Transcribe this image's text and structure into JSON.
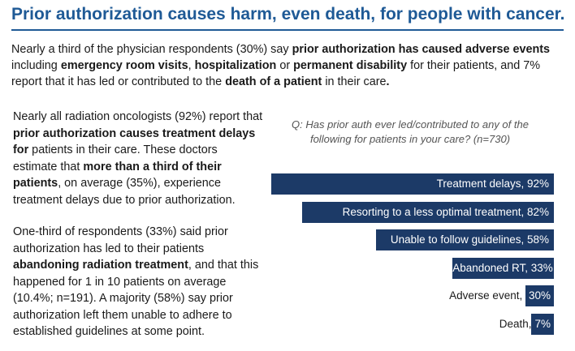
{
  "title": "Prior authorization causes harm, even death, for people with cancer.",
  "intro": {
    "t1": "Nearly a third of the physician respondents (30%) say ",
    "b1": "prior authorization has caused adverse events",
    "t2": " including ",
    "b2": "emergency room visits",
    "t3": ", ",
    "b3": "hospitalization",
    "t4": " or ",
    "b4": "permanent disability",
    "t5": " for their patients, and 7% report that it has led or contributed to the ",
    "b5": "death of a patient",
    "t6": " in their care",
    "b6": "."
  },
  "para1": {
    "t1": "Nearly all radiation oncologists (92%) report that ",
    "b1": "prior authorization causes treatment delays for",
    "t2": " patients in their care. These doctors estimate that ",
    "b2": "more than a third of their patients",
    "t3": ", on average (35%), experience treatment delays due to prior authorization."
  },
  "para2": {
    "t1": "One-third of respondents (33%) said prior authorization has led to their patients ",
    "b1": "abandoning radiation treatment",
    "t2": ", and that this happened for 1 in 10 patients on average (10.4%; n=191). A majority (58%) say prior authorization left them unable to adhere to established guidelines at some point."
  },
  "question": "Q: Has prior auth ever led/contributed to any of the following for patients in your care? (n=730)",
  "chart_data": {
    "type": "bar",
    "orientation": "horizontal",
    "title": "Q: Has prior auth ever led/contributed to any of the following for patients in your care? (n=730)",
    "categories": [
      "Treatment delays",
      "Resorting to a less optimal treatment",
      "Unable to follow guidelines",
      "Abandoned RT",
      "Adverse event",
      "Death"
    ],
    "values": [
      92,
      82,
      58,
      33,
      30,
      7
    ],
    "unit": "%",
    "data_labels": [
      "Treatment delays, ",
      "Resorting to a less optimal treatment, ",
      "Unable to follow guidelines, ",
      "Abandoned RT, ",
      "Adverse event, ",
      "Death,"
    ],
    "value_labels": [
      "92%",
      "82%",
      "58%",
      "33%",
      "30%",
      "7%"
    ],
    "xlim": [
      0,
      92
    ],
    "bar_color": "#1c3a67",
    "grid": false,
    "legend": "none"
  }
}
